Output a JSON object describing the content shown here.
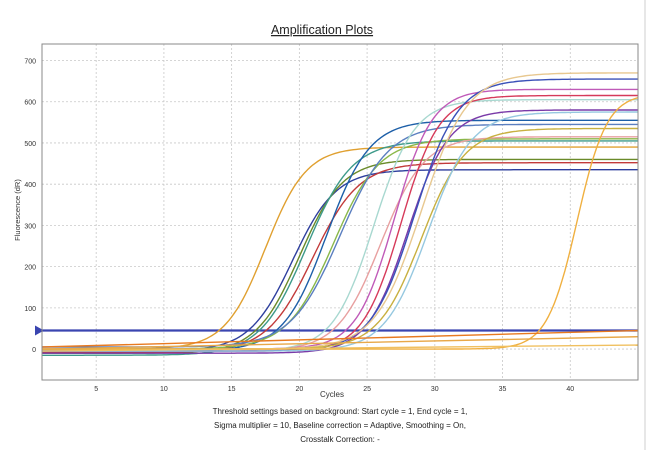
{
  "chart_data": {
    "type": "line",
    "title": "Amplification Plots",
    "xlabel": "Cycles",
    "ylabel": "Fluorescence (dR)",
    "xlim": [
      1,
      45
    ],
    "ylim": [
      -75,
      740
    ],
    "xticks": [
      5,
      10,
      15,
      20,
      25,
      30,
      35,
      40
    ],
    "yticks": [
      0,
      100,
      200,
      300,
      400,
      500,
      600,
      700
    ],
    "grid": true,
    "legend": "none",
    "threshold": 45,
    "threshold_color": "#3a45b0",
    "footnote_lines": [
      "Threshold settings based on background: Start cycle = 1, End cycle = 1,",
      "Sigma multiplier = 10, Baseline correction = Adaptive, Smoothing = On,",
      "Crosstalk Correction: -"
    ],
    "series": [
      {
        "color": "#e0a030",
        "plateau": 490,
        "ct": 17.5,
        "slope": 1.5,
        "base": 0
      },
      {
        "color": "#2e3f9e",
        "plateau": 440,
        "ct": 19.5,
        "slope": 1.6,
        "base": -5
      },
      {
        "color": "#6a8a2a",
        "plateau": 470,
        "ct": 20.0,
        "slope": 1.6,
        "base": -10
      },
      {
        "color": "#3d9a8a",
        "plateau": 520,
        "ct": 20.5,
        "slope": 1.7,
        "base": -15
      },
      {
        "color": "#c23a3a",
        "plateau": 460,
        "ct": 21.0,
        "slope": 1.7,
        "base": -8
      },
      {
        "color": "#1d5fa8",
        "plateau": 560,
        "ct": 22.0,
        "slope": 1.6,
        "base": -5
      },
      {
        "color": "#8ab84a",
        "plateau": 510,
        "ct": 22.5,
        "slope": 1.7,
        "base": 0
      },
      {
        "color": "#5b7fc0",
        "plateau": 540,
        "ct": 23.0,
        "slope": 1.8,
        "base": 5
      },
      {
        "color": "#a8d8d0",
        "plateau": 610,
        "ct": 25.5,
        "slope": 1.5,
        "base": -5
      },
      {
        "color": "#e8a0a0",
        "plateau": 520,
        "ct": 26.0,
        "slope": 1.6,
        "base": -5
      },
      {
        "color": "#c05ab8",
        "plateau": 630,
        "ct": 27.0,
        "slope": 1.4,
        "base": 0
      },
      {
        "color": "#d63a5a",
        "plateau": 620,
        "ct": 27.5,
        "slope": 1.4,
        "base": -5
      },
      {
        "color": "#7a3aa8",
        "plateau": 590,
        "ct": 28.0,
        "slope": 1.5,
        "base": -10
      },
      {
        "color": "#3a50b8",
        "plateau": 660,
        "ct": 28.5,
        "slope": 1.6,
        "base": -5
      },
      {
        "color": "#e8c890",
        "plateau": 670,
        "ct": 29.0,
        "slope": 1.7,
        "base": 0
      },
      {
        "color": "#c8b040",
        "plateau": 535,
        "ct": 29.0,
        "slope": 1.6,
        "base": 0
      },
      {
        "color": "#96c8e0",
        "plateau": 580,
        "ct": 29.5,
        "slope": 1.6,
        "base": -5
      },
      {
        "color": "#f0b040",
        "plateau": 620,
        "ct": 40.5,
        "slope": 1.1,
        "base": 0
      },
      {
        "color": "#e87a20",
        "linear": [
          [
            1,
            5
          ],
          [
            45,
            45
          ]
        ]
      },
      {
        "color": "#e8a848",
        "linear": [
          [
            1,
            0
          ],
          [
            45,
            30
          ]
        ]
      },
      {
        "color": "#f0c060",
        "linear": [
          [
            1,
            -5
          ],
          [
            45,
            10
          ]
        ]
      }
    ]
  }
}
